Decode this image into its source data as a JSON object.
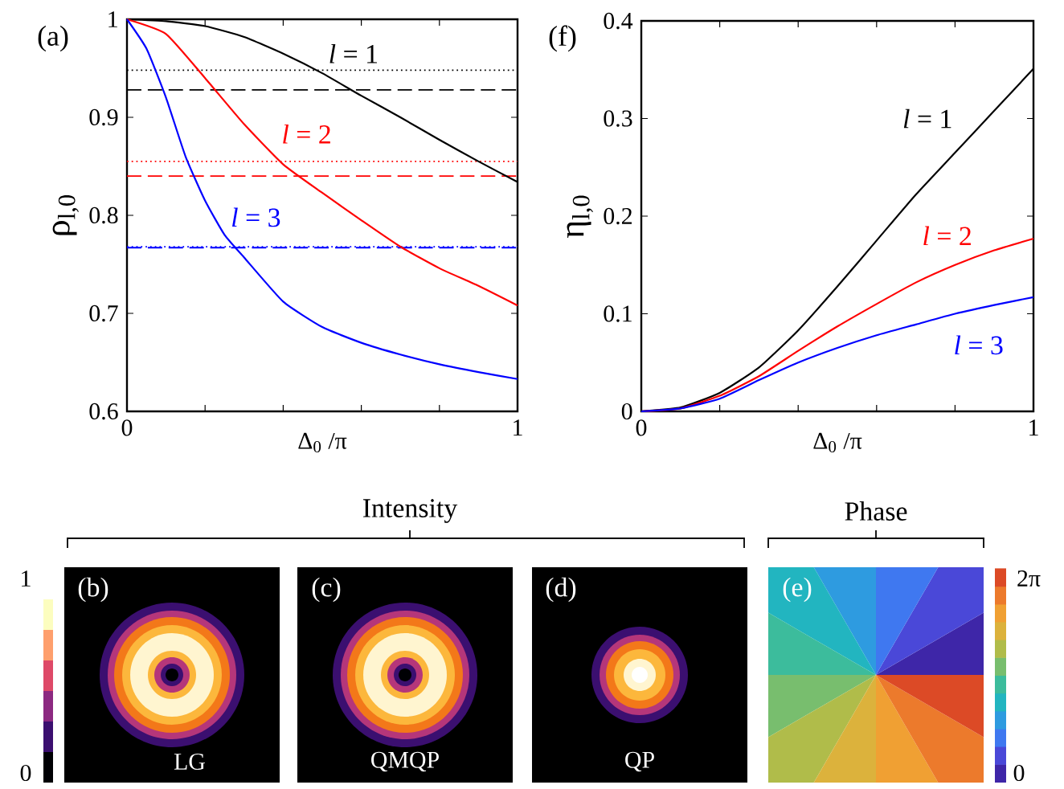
{
  "chart_data": [
    {
      "type": "line",
      "title": "(a)",
      "xlabel": "Δ$_{0}$ /π",
      "ylabel": "ρ$_{l,0}$",
      "x": [
        0,
        0.1,
        0.2,
        0.3,
        0.4,
        0.5,
        0.6,
        0.7,
        0.8,
        0.9,
        1
      ],
      "series": [
        {
          "name": "*l* = 1",
          "color": "#000000",
          "values": [
            1,
            0.998,
            0.993,
            0.982,
            0.965,
            0.945,
            0.922,
            0.9,
            0.877,
            0.855,
            0.834
          ]
        },
        {
          "name": "*l* = 2",
          "color": "#ff0000",
          "values": [
            1,
            0.985,
            0.94,
            0.893,
            0.852,
            0.823,
            0.795,
            0.768,
            0.746,
            0.728,
            0.708
          ]
        },
        {
          "name": "*l* = 3",
          "color": "#0000ff",
          "x": [
            0,
            0.05,
            0.1,
            0.15,
            0.2,
            0.25,
            0.3,
            0.4,
            0.5,
            0.6,
            0.7,
            0.8,
            0.9,
            1
          ],
          "values": [
            1,
            0.97,
            0.92,
            0.86,
            0.815,
            0.78,
            0.757,
            0.712,
            0.686,
            0.67,
            0.658,
            0.648,
            0.64,
            0.633
          ]
        }
      ],
      "ref_lines": [
        {
          "axis": "y",
          "value": 0.948,
          "color": "#000000",
          "line_style": "dotted"
        },
        {
          "axis": "y",
          "value": 0.928,
          "color": "#000000",
          "line_style": "dashed"
        },
        {
          "axis": "y",
          "value": 0.855,
          "color": "#ff0000",
          "line_style": "dotted"
        },
        {
          "axis": "y",
          "value": 0.84,
          "color": "#ff0000",
          "line_style": "dashed"
        },
        {
          "axis": "y",
          "value": 0.768,
          "color": "#0000ff",
          "line_style": "dotted"
        },
        {
          "axis": "y",
          "value": 0.767,
          "color": "#0000ff",
          "line_style": "dashed"
        }
      ],
      "xlim": [
        0,
        1
      ],
      "ylim": [
        0.6,
        1
      ],
      "xticks": [
        0,
        {
          "value": 0.2,
          "label": null
        },
        {
          "value": 0.4,
          "label": null
        },
        {
          "value": 0.6,
          "label": null
        },
        {
          "value": 0.8,
          "label": null
        },
        1
      ],
      "yticks": [
        0.6,
        0.7,
        0.8,
        0.9,
        1
      ]
    },
    {
      "type": "line",
      "title": "(f)",
      "xlabel": "Δ$_{0}$ /π",
      "ylabel": "η$_{l,0}$",
      "x": [
        0,
        0.1,
        0.2,
        0.3,
        0.4,
        0.5,
        0.6,
        0.7,
        0.8,
        0.9,
        1
      ],
      "series": [
        {
          "name": "*l* = 1",
          "color": "#000000",
          "values": [
            0,
            0.004,
            0.019,
            0.045,
            0.083,
            0.128,
            0.175,
            0.222,
            0.265,
            0.308,
            0.351
          ]
        },
        {
          "name": "*l* = 2",
          "color": "#ff0000",
          "values": [
            0,
            0.003,
            0.016,
            0.036,
            0.062,
            0.087,
            0.11,
            0.132,
            0.15,
            0.165,
            0.177
          ]
        },
        {
          "name": "*l* = 3",
          "color": "#0000ff",
          "values": [
            0,
            0.003,
            0.013,
            0.032,
            0.05,
            0.065,
            0.078,
            0.089,
            0.1,
            0.109,
            0.117
          ]
        }
      ],
      "xlim": [
        0,
        1
      ],
      "ylim": [
        0,
        0.4
      ],
      "xticks": [
        0,
        {
          "value": 0.2,
          "label": null
        },
        {
          "value": 0.4,
          "label": null
        },
        {
          "value": 0.6,
          "label": null
        },
        {
          "value": 0.8,
          "label": null
        },
        1
      ],
      "yticks": [
        0,
        0.1,
        0.2,
        0.3,
        0.4
      ]
    },
    {
      "type": "other",
      "annotations": [
        "Intensity",
        "Phase",
        "(b)",
        "(c)",
        "(d)",
        "(e)",
        "LG",
        "QMQP",
        "QP",
        "1",
        "0",
        "2π",
        "0"
      ]
    }
  ]
}
